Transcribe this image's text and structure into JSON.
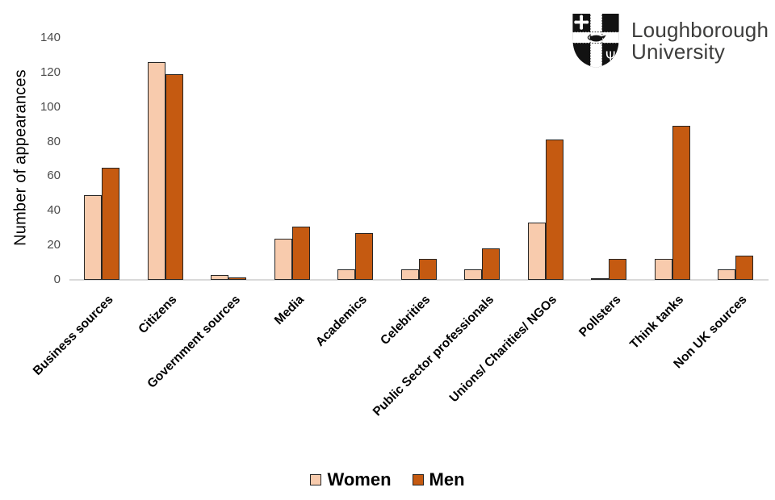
{
  "page": {
    "background": "#FFFFFF"
  },
  "logo": {
    "icon": "loughborough-shield-icon",
    "org_line1": "Loughborough",
    "org_line2": "University",
    "text_color": "#3d3d3c"
  },
  "chart_data": {
    "type": "bar",
    "title": "",
    "xlabel": "",
    "ylabel": "Number of appearances",
    "ylim": [
      0,
      140
    ],
    "yticks": [
      0,
      20,
      40,
      60,
      80,
      100,
      120,
      140
    ],
    "grid": false,
    "legend_position": "bottom",
    "axis_line_color": "#D9D9D9",
    "tick_label_color": "#4a4a4a",
    "categories": [
      "Business sources",
      "Citizens",
      "Government sources",
      "Media",
      "Academics",
      "Celebrities",
      "Public Sector professionals",
      "Unions/ Charities/ NGOs",
      "Pollsters",
      "Think tanks",
      "Non UK sources"
    ],
    "series": [
      {
        "name": "Women",
        "color": "#F8CBAD",
        "border_color": "#262626",
        "values": [
          49,
          126,
          3,
          24,
          6,
          6,
          6,
          33,
          1,
          12,
          6
        ]
      },
      {
        "name": "Men",
        "color": "#C55A11",
        "border_color": "#262626",
        "values": [
          65,
          119,
          1.5,
          31,
          27,
          12,
          18,
          81,
          12,
          89,
          14
        ]
      }
    ]
  }
}
